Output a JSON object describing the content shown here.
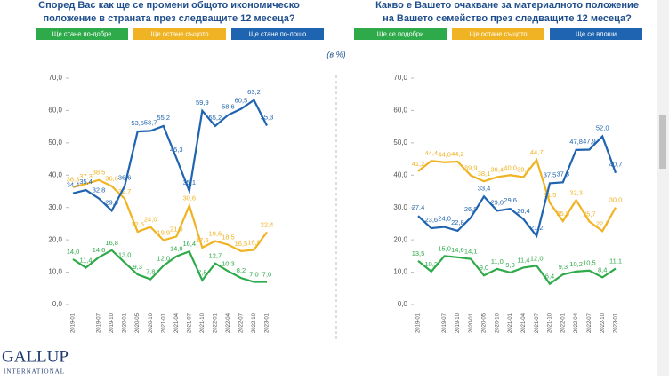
{
  "unit_note": "(в %)",
  "footer": {
    "brand": "GALLUP",
    "sub": "INTERNATIONAL"
  },
  "chart_data": [
    {
      "type": "line",
      "title": [
        "Според Вас как ще се промени общото икономическо",
        "положение в страната през следващите 12 месеца?"
      ],
      "categories": [
        "2019-01",
        null,
        "2019-07",
        "2019-10",
        "2020-01",
        "2020-05",
        "2020-10",
        "2021-01",
        "2021-04",
        "2021-07",
        "2021-10",
        "2022-01",
        "2022-04",
        "2022-07",
        "2022-10",
        "2023-01"
      ],
      "ylim": [
        0,
        70
      ],
      "yticks": [
        {
          "value": 0,
          "label": "0,0"
        },
        {
          "value": 10,
          "label": "10,0"
        },
        {
          "value": 20,
          "label": "20,0"
        },
        {
          "value": 30,
          "label": "30,0"
        },
        {
          "value": 40,
          "label": "40,0"
        },
        {
          "value": 50,
          "label": "50,0"
        },
        {
          "value": 60,
          "label": "60,0"
        },
        {
          "value": 70,
          "label": "70,0"
        }
      ],
      "series": [
        {
          "name": "Ще стане по-добре",
          "color": "#2eaa4a",
          "values": [
            14.0,
            11.4,
            14.6,
            16.8,
            13.0,
            9.3,
            7.8,
            12.0,
            14.9,
            16.4,
            7.5,
            12.7,
            10.3,
            8.2,
            7.0,
            7.0
          ],
          "value_labels": [
            "14,0",
            "11,4",
            "14,6",
            "16,8",
            "13,0",
            "9,3",
            "7,8",
            "12,0",
            "14,9",
            "16,4",
            "7,5",
            "12,7",
            "10,3",
            "8,2",
            "7,0",
            "7,0"
          ]
        },
        {
          "name": "Ще остане същото",
          "color": "#f0b323",
          "values": [
            36.3,
            37.3,
            38.5,
            36.6,
            32.7,
            22.5,
            24.0,
            19.9,
            21.0,
            30.6,
            17.6,
            19.6,
            18.5,
            16.5,
            16.9,
            22.4
          ],
          "value_labels": [
            "36,3",
            "37,3",
            "38,5",
            "36,6",
            "32,7",
            "22,5",
            "24,0",
            "19,9",
            "21,0",
            "30,6",
            "17,6",
            "19,6",
            "18,5",
            "16,5",
            "16,9",
            "22,4"
          ]
        },
        {
          "name": "Ще стане по-лошо",
          "color": "#1f64b0",
          "values": [
            34.4,
            35.4,
            32.8,
            29.0,
            36.6,
            53.5,
            53.7,
            55.2,
            45.3,
            35.1,
            59.9,
            55.2,
            58.6,
            60.5,
            63.2,
            55.3
          ],
          "value_labels": [
            "34,4",
            "35,4",
            "32,8",
            "29,0",
            "36,6",
            "53,5",
            "53,7",
            "55,2",
            "45,3",
            "35,1",
            "59,9",
            "55,2",
            "58,6",
            "60,5",
            "63,2",
            "55,3"
          ]
        }
      ]
    },
    {
      "type": "line",
      "title": [
        "Какво е Вашето очакване за материалното положение",
        "на Вашето семейство през следващите 12 месеца?"
      ],
      "categories": [
        "2019-01",
        null,
        "2019-07",
        "2019-10",
        "2020-01",
        "2020-05",
        "2020-10",
        "2021-01",
        "2021-04",
        "2021-07",
        "2021-10",
        "2022-01",
        "2022-04",
        "2022-07",
        "2022-10",
        "2023-01"
      ],
      "ylim": [
        0,
        70
      ],
      "yticks": [
        {
          "value": 0,
          "label": "0,0"
        },
        {
          "value": 10,
          "label": "10,0"
        },
        {
          "value": 20,
          "label": "20,0"
        },
        {
          "value": 30,
          "label": "30,0"
        },
        {
          "value": 40,
          "label": "40,0"
        },
        {
          "value": 50,
          "label": "50,0"
        },
        {
          "value": 60,
          "label": "60,0"
        },
        {
          "value": 70,
          "label": "70,0"
        }
      ],
      "series": [
        {
          "name": "Ще се подобри",
          "color": "#2eaa4a",
          "values": [
            13.5,
            10.2,
            15.0,
            14.6,
            14.1,
            9.0,
            11.0,
            9.9,
            11.4,
            12.0,
            6.4,
            9.3,
            10.2,
            10.5,
            8.4,
            11.1
          ],
          "value_labels": [
            "13,5",
            "10,2",
            "15,0",
            "14,6",
            "14,1",
            "9,0",
            "11,0",
            "9,9",
            "11,4",
            "12,0",
            "6,4",
            "9,3",
            "10,2",
            "10,5",
            "8,4",
            "11,1"
          ]
        },
        {
          "name": "Ще остане същото",
          "color": "#f0b323",
          "values": [
            41.2,
            44.4,
            44.0,
            44.2,
            39.9,
            38.1,
            39.4,
            40.0,
            39.4,
            44.7,
            31.5,
            25.8,
            32.3,
            25.7,
            22.7,
            30.0
          ],
          "value_labels": [
            "41,2",
            "44,4",
            "44,0",
            "44,2",
            "39,9",
            "38,1",
            "39,4",
            "40,0",
            "39,4",
            "44,7",
            "31,5",
            "25,8",
            "32,3",
            "25,7",
            "22,7",
            "30,0"
          ]
        },
        {
          "name": "Ще се влоши",
          "color": "#1f64b0",
          "values": [
            27.4,
            23.6,
            24.0,
            22.8,
            26.9,
            33.4,
            29.0,
            29.6,
            26.4,
            21.2,
            37.5,
            37.8,
            47.8,
            47.9,
            52.0,
            40.7
          ],
          "value_labels": [
            "27,4",
            "23,6",
            "24,0",
            "22,8",
            "26,9",
            "33,4",
            "29,0",
            "29,6",
            "26,4",
            "21,2",
            "37,5",
            "37,8",
            "47,8",
            "47,9",
            "52,0",
            "40,7"
          ]
        }
      ]
    }
  ]
}
